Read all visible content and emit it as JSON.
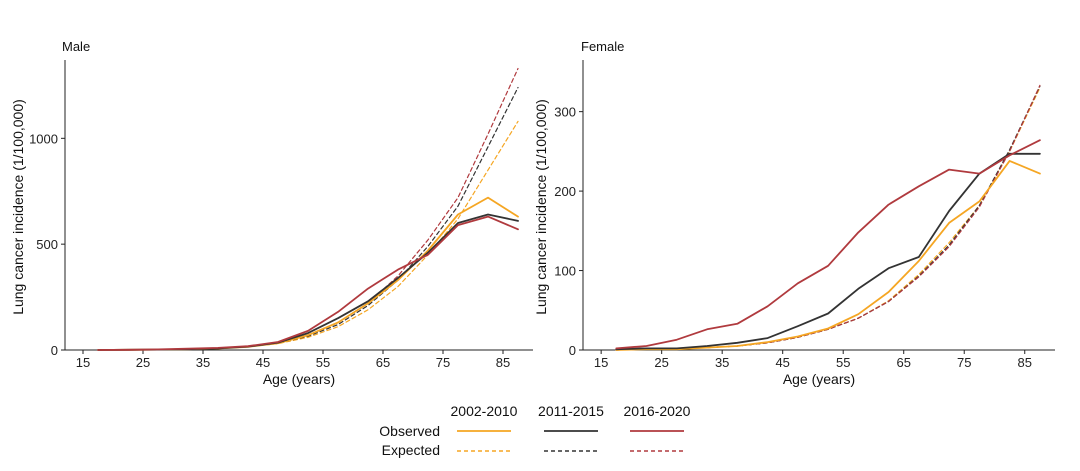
{
  "chart_data": [
    {
      "type": "line",
      "title": "Male",
      "xlabel": "Age (years)",
      "ylabel": "Lung cancer incidence (1/100,000)",
      "xlim": [
        12,
        90
      ],
      "ylim": [
        0,
        1370
      ],
      "xticks": [
        15,
        25,
        35,
        45,
        55,
        65,
        75,
        85
      ],
      "yticks": [
        0,
        500,
        1000
      ],
      "grid": false,
      "x": [
        17.5,
        22.5,
        27.5,
        32.5,
        37.5,
        42.5,
        47.5,
        52.5,
        57.5,
        62.5,
        67.5,
        72.5,
        77.5,
        82.5,
        87.5
      ],
      "series": [
        {
          "name": "2002-2010",
          "kind": "Observed",
          "color": "#F5A623",
          "dashed": false,
          "values": [
            0,
            1,
            2,
            4,
            7,
            15,
            32,
            70,
            130,
            220,
            330,
            470,
            640,
            720,
            630
          ]
        },
        {
          "name": "2011-2015",
          "kind": "Observed",
          "color": "#333333",
          "dashed": false,
          "values": [
            0,
            1,
            2,
            4,
            8,
            16,
            35,
            80,
            150,
            230,
            340,
            460,
            600,
            640,
            610
          ]
        },
        {
          "name": "2016-2020",
          "kind": "Observed",
          "color": "#B03A3E",
          "dashed": false,
          "values": [
            0,
            1,
            3,
            6,
            10,
            18,
            38,
            90,
            180,
            290,
            380,
            450,
            590,
            630,
            570
          ]
        },
        {
          "name": "2002-2010",
          "kind": "Expected",
          "color": "#F5A623",
          "dashed": true,
          "values": [
            0,
            1,
            2,
            4,
            7,
            15,
            30,
            60,
            110,
            190,
            300,
            450,
            620,
            850,
            1080
          ]
        },
        {
          "name": "2011-2015",
          "kind": "Expected",
          "color": "#333333",
          "dashed": true,
          "values": [
            0,
            1,
            2,
            4,
            7,
            15,
            32,
            65,
            120,
            210,
            330,
            490,
            680,
            960,
            1240
          ]
        },
        {
          "name": "2016-2020",
          "kind": "Expected",
          "color": "#B03A3E",
          "dashed": true,
          "values": [
            0,
            1,
            2,
            4,
            8,
            16,
            33,
            70,
            130,
            220,
            350,
            520,
            720,
            1020,
            1330
          ]
        }
      ]
    },
    {
      "type": "line",
      "title": "Female",
      "xlabel": "Age (years)",
      "ylabel": "Lung cancer incidence (1/100,000)",
      "xlim": [
        12,
        90
      ],
      "ylim": [
        0,
        365
      ],
      "xticks": [
        15,
        25,
        35,
        45,
        55,
        65,
        75,
        85
      ],
      "yticks": [
        0,
        100,
        200,
        300
      ],
      "grid": false,
      "x": [
        17.5,
        22.5,
        27.5,
        32.5,
        37.5,
        42.5,
        47.5,
        52.5,
        57.5,
        62.5,
        67.5,
        72.5,
        77.5,
        82.5,
        87.5
      ],
      "series": [
        {
          "name": "2002-2010",
          "kind": "Observed",
          "color": "#F5A623",
          "dashed": false,
          "values": [
            0,
            1,
            1,
            3,
            5,
            10,
            17,
            27,
            45,
            73,
            112,
            160,
            187,
            238,
            222
          ]
        },
        {
          "name": "2011-2015",
          "kind": "Observed",
          "color": "#333333",
          "dashed": false,
          "values": [
            1,
            2,
            2,
            5,
            9,
            15,
            30,
            46,
            77,
            103,
            117,
            175,
            222,
            247,
            247
          ]
        },
        {
          "name": "2016-2020",
          "kind": "Observed",
          "color": "#B03A3E",
          "dashed": false,
          "values": [
            2,
            5,
            13,
            26,
            33,
            55,
            84,
            106,
            148,
            183,
            206,
            227,
            222,
            245,
            264
          ]
        },
        {
          "name": "2002-2010",
          "kind": "Expected",
          "color": "#F5A623",
          "dashed": true,
          "values": [
            0,
            1,
            1,
            3,
            5,
            9,
            16,
            26,
            40,
            62,
            95,
            135,
            182,
            250,
            330
          ]
        },
        {
          "name": "2011-2015",
          "kind": "Expected",
          "color": "#333333",
          "dashed": true,
          "values": [
            0,
            1,
            1,
            3,
            5,
            9,
            16,
            26,
            40,
            61,
            93,
            132,
            182,
            252,
            332
          ]
        },
        {
          "name": "2016-2020",
          "kind": "Expected",
          "color": "#B03A3E",
          "dashed": true,
          "values": [
            0,
            1,
            1,
            3,
            5,
            9,
            16,
            26,
            40,
            61,
            92,
            130,
            180,
            250,
            333
          ]
        }
      ]
    }
  ],
  "legend": {
    "periods": [
      "2002-2010",
      "2011-2015",
      "2016-2020"
    ],
    "rows": [
      "Observed",
      "Expected"
    ],
    "colors": [
      "#F5A623",
      "#333333",
      "#B03A3E"
    ],
    "placement": "bottom-center"
  }
}
